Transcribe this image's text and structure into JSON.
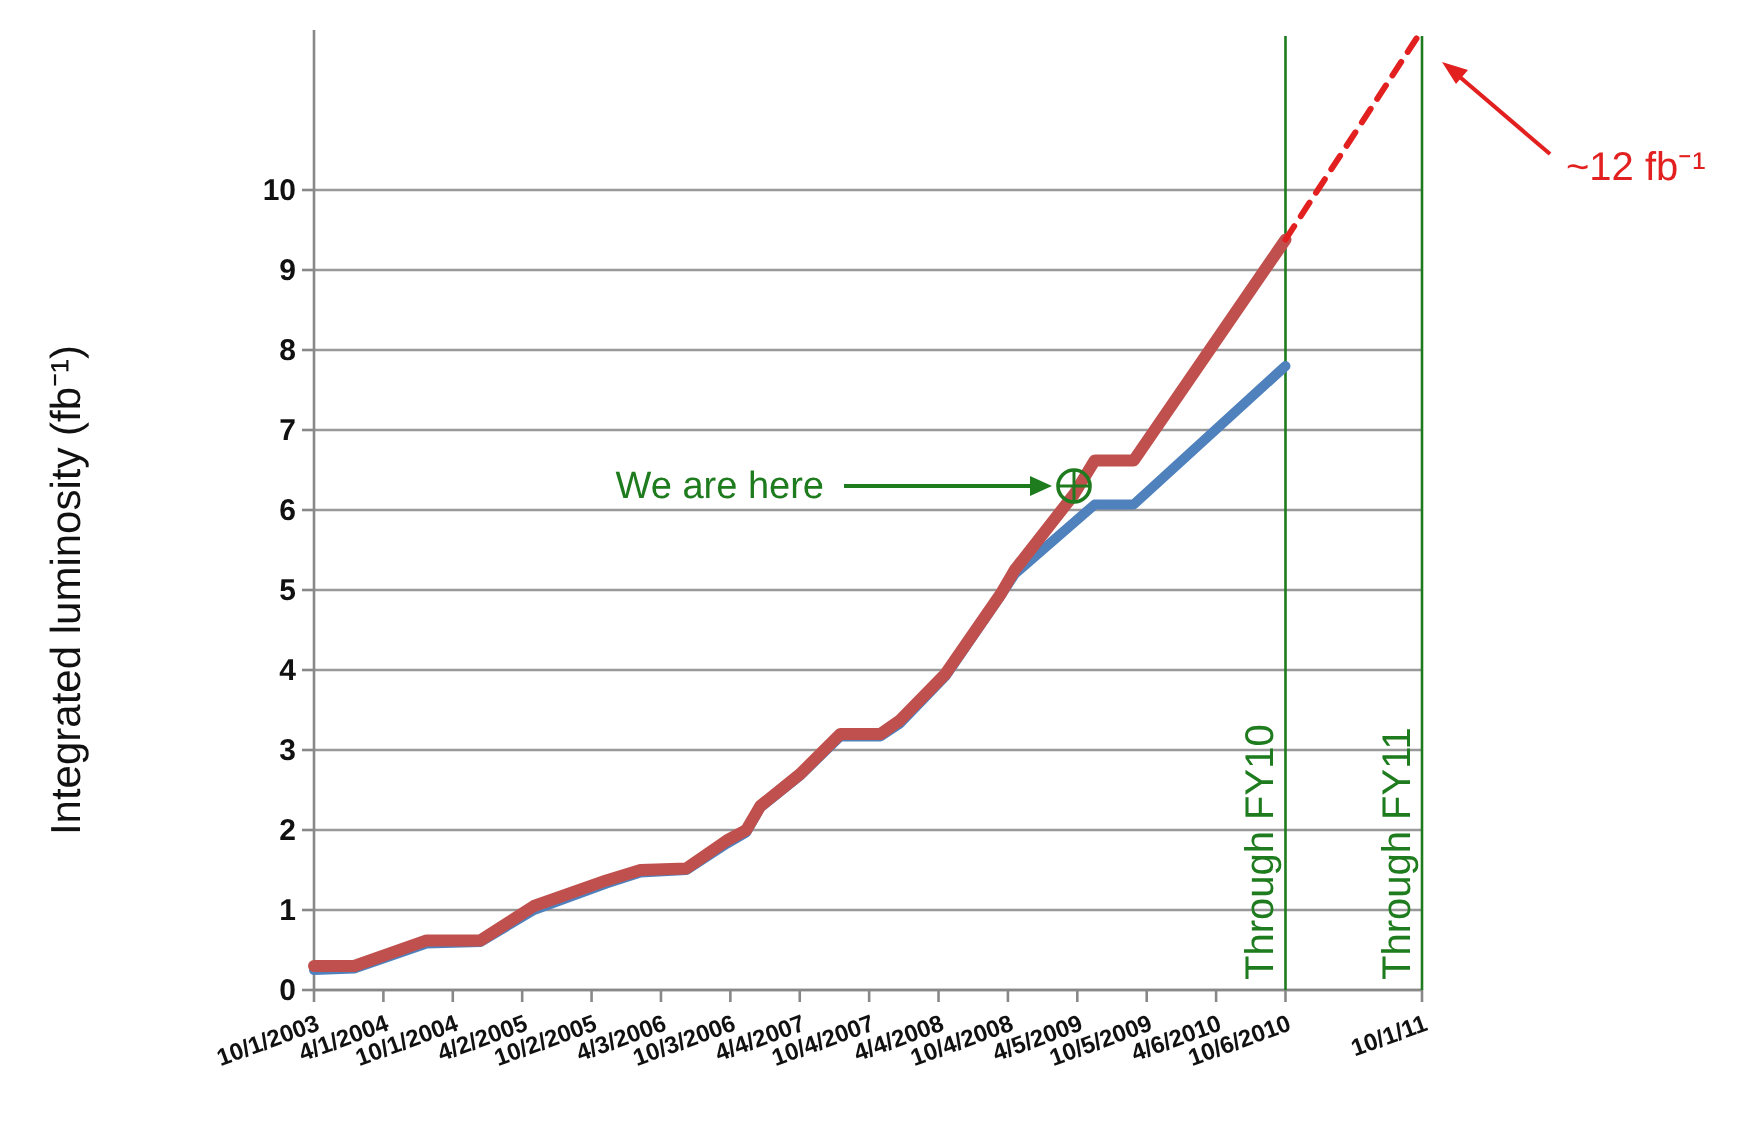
{
  "chart_data": {
    "type": "line",
    "ylabel": "Integrated luminosity (fb⁻¹)",
    "xlim": [
      "2003-10-01",
      "2011-10-01"
    ],
    "ylim": [
      0,
      12
    ],
    "xticks": [
      {
        "value": "2003-10-01",
        "label": "10/1/2003"
      },
      {
        "value": "2004-04-01",
        "label": "4/1/2004"
      },
      {
        "value": "2004-10-01",
        "label": "10/1/2004"
      },
      {
        "value": "2005-04-02",
        "label": "4/2/2005"
      },
      {
        "value": "2005-10-02",
        "label": "10/2/2005"
      },
      {
        "value": "2006-04-03",
        "label": "4/3/2006"
      },
      {
        "value": "2006-10-03",
        "label": "10/3/2006"
      },
      {
        "value": "2007-04-04",
        "label": "4/4/2007"
      },
      {
        "value": "2007-10-04",
        "label": "10/4/2007"
      },
      {
        "value": "2008-04-04",
        "label": "4/4/2008"
      },
      {
        "value": "2008-10-04",
        "label": "10/4/2008"
      },
      {
        "value": "2009-04-05",
        "label": "4/5/2009"
      },
      {
        "value": "2009-10-05",
        "label": "10/5/2009"
      },
      {
        "value": "2010-04-06",
        "label": "4/6/2010"
      },
      {
        "value": "2010-10-06",
        "label": "10/6/2010"
      },
      {
        "value": "2011-10-01",
        "label": "10/1/11"
      }
    ],
    "yticks": [
      0,
      1,
      2,
      3,
      4,
      5,
      6,
      7,
      8,
      9,
      10
    ],
    "grid": "y",
    "series": [
      {
        "color": "#4f81bd",
        "x": [
          "2003-10-01",
          "2004-01-15",
          "2004-07-24",
          "2004-12-13",
          "2005-05-03",
          "2005-11-10",
          "2006-02-08",
          "2006-06-09",
          "2006-09-24",
          "2006-11-14",
          "2006-12-21",
          "2007-04-05",
          "2007-07-20",
          "2007-11-03",
          "2007-12-24",
          "2008-04-22",
          "2008-09-15",
          "2008-10-22",
          "2009-05-21",
          "2009-09-01",
          "2010-10-06"
        ],
        "values": [
          0.25,
          0.27,
          0.58,
          0.6,
          1.0,
          1.33,
          1.47,
          1.5,
          1.83,
          1.97,
          2.28,
          2.68,
          3.17,
          3.17,
          3.33,
          3.92,
          4.93,
          5.2,
          6.07,
          6.07,
          7.8
        ]
      },
      {
        "color": "#c0504d",
        "x": [
          "2003-10-01",
          "2004-01-15",
          "2004-07-24",
          "2004-12-13",
          "2005-05-03",
          "2005-11-10",
          "2006-02-08",
          "2006-06-09",
          "2006-09-24",
          "2006-11-14",
          "2006-12-21",
          "2007-04-05",
          "2007-07-20",
          "2007-11-03",
          "2007-12-24",
          "2008-04-22",
          "2008-09-15",
          "2008-10-22",
          "2009-03-28",
          "2009-05-21",
          "2009-09-01",
          "2010-10-06"
        ],
        "values": [
          0.3,
          0.3,
          0.62,
          0.62,
          1.05,
          1.37,
          1.5,
          1.52,
          1.87,
          2.0,
          2.3,
          2.7,
          3.2,
          3.2,
          3.37,
          3.95,
          4.95,
          5.25,
          6.2,
          6.62,
          6.62,
          9.38
        ]
      },
      {
        "color": "#e32020",
        "line_style": "dashed",
        "x": [
          "2010-10-06",
          "2011-10-01"
        ],
        "values": [
          9.38,
          12
        ]
      }
    ],
    "ref_lines": [
      {
        "axis": "x",
        "value": "2010-10-06",
        "label": "Through FY10",
        "color": "#1e7b1e"
      },
      {
        "axis": "x",
        "value": "2011-10-01",
        "label": "Through FY11",
        "color": "#1e7b1e"
      }
    ],
    "annotations": [
      "We are here",
      "~12 fb⁻¹"
    ]
  }
}
